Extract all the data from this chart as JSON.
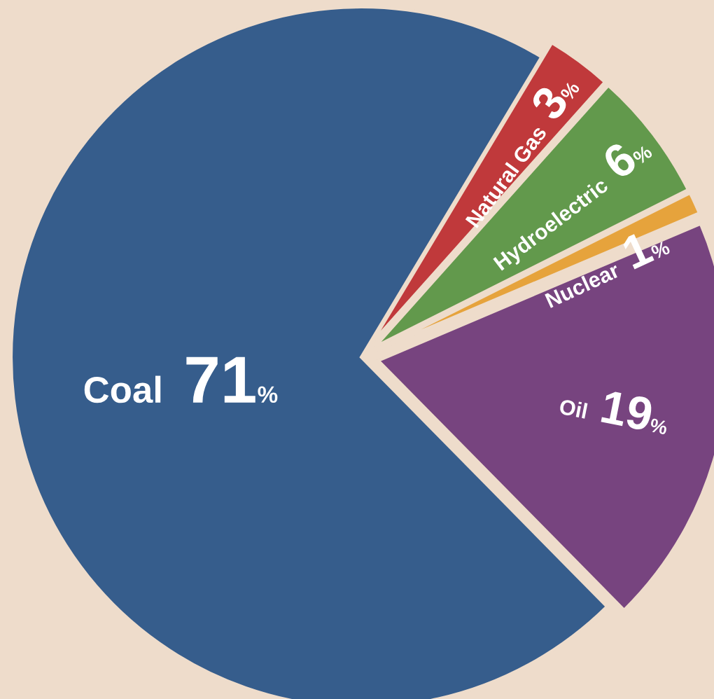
{
  "chart_data": {
    "type": "pie",
    "categories": [
      "Natural Gas",
      "Hydroelectric",
      "Nuclear",
      "Oil",
      "Coal"
    ],
    "values": [
      3,
      6,
      1,
      19,
      71
    ],
    "colors": [
      "#c0393b",
      "#62994c",
      "#e6a33c",
      "#77447f",
      "#365d8c"
    ],
    "value_labels": [
      "3%",
      "6%",
      "1%",
      "19%",
      "71%"
    ],
    "legend": false
  }
}
